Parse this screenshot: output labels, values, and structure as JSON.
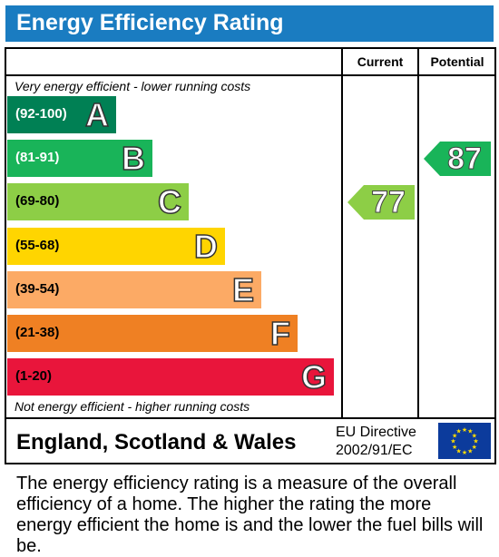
{
  "title": "Energy Efficiency Rating",
  "columns": {
    "current": "Current",
    "potential": "Potential"
  },
  "notes": {
    "top": "Very energy efficient - lower running costs",
    "bottom": "Not energy efficient - higher running costs"
  },
  "chart_data": {
    "type": "bar",
    "title": "Energy Efficiency Rating",
    "categories": [
      "A",
      "B",
      "C",
      "D",
      "E",
      "F",
      "G"
    ],
    "bands": [
      {
        "letter": "A",
        "range": "(92-100)",
        "color": "#008054",
        "range_color": "#ffffff"
      },
      {
        "letter": "B",
        "range": "(81-91)",
        "color": "#19b459",
        "range_color": "#ffffff"
      },
      {
        "letter": "C",
        "range": "(69-80)",
        "color": "#8dce46",
        "range_color": "#000000"
      },
      {
        "letter": "D",
        "range": "(55-68)",
        "color": "#ffd500",
        "range_color": "#000000"
      },
      {
        "letter": "E",
        "range": "(39-54)",
        "color": "#fcaa65",
        "range_color": "#000000"
      },
      {
        "letter": "F",
        "range": "(21-38)",
        "color": "#ef8023",
        "range_color": "#000000"
      },
      {
        "letter": "G",
        "range": "(1-20)",
        "color": "#e9153b",
        "range_color": "#000000"
      }
    ],
    "current": {
      "value": 77,
      "band": "C",
      "color": "#8dce46"
    },
    "potential": {
      "value": 87,
      "band": "B",
      "color": "#19b459"
    }
  },
  "footer": {
    "region": "England, Scotland & Wales",
    "directive_line1": "EU Directive",
    "directive_line2": "2002/91/EC"
  },
  "description": "The energy efficiency rating is a measure of the overall efficiency of a home. The higher the rating the more energy efficient the home is and the lower the fuel bills will be.",
  "colors": {
    "title_bar": "#1a7cc1",
    "eu_flag": "#0c3b9c",
    "eu_stars": "#ffdd00"
  }
}
